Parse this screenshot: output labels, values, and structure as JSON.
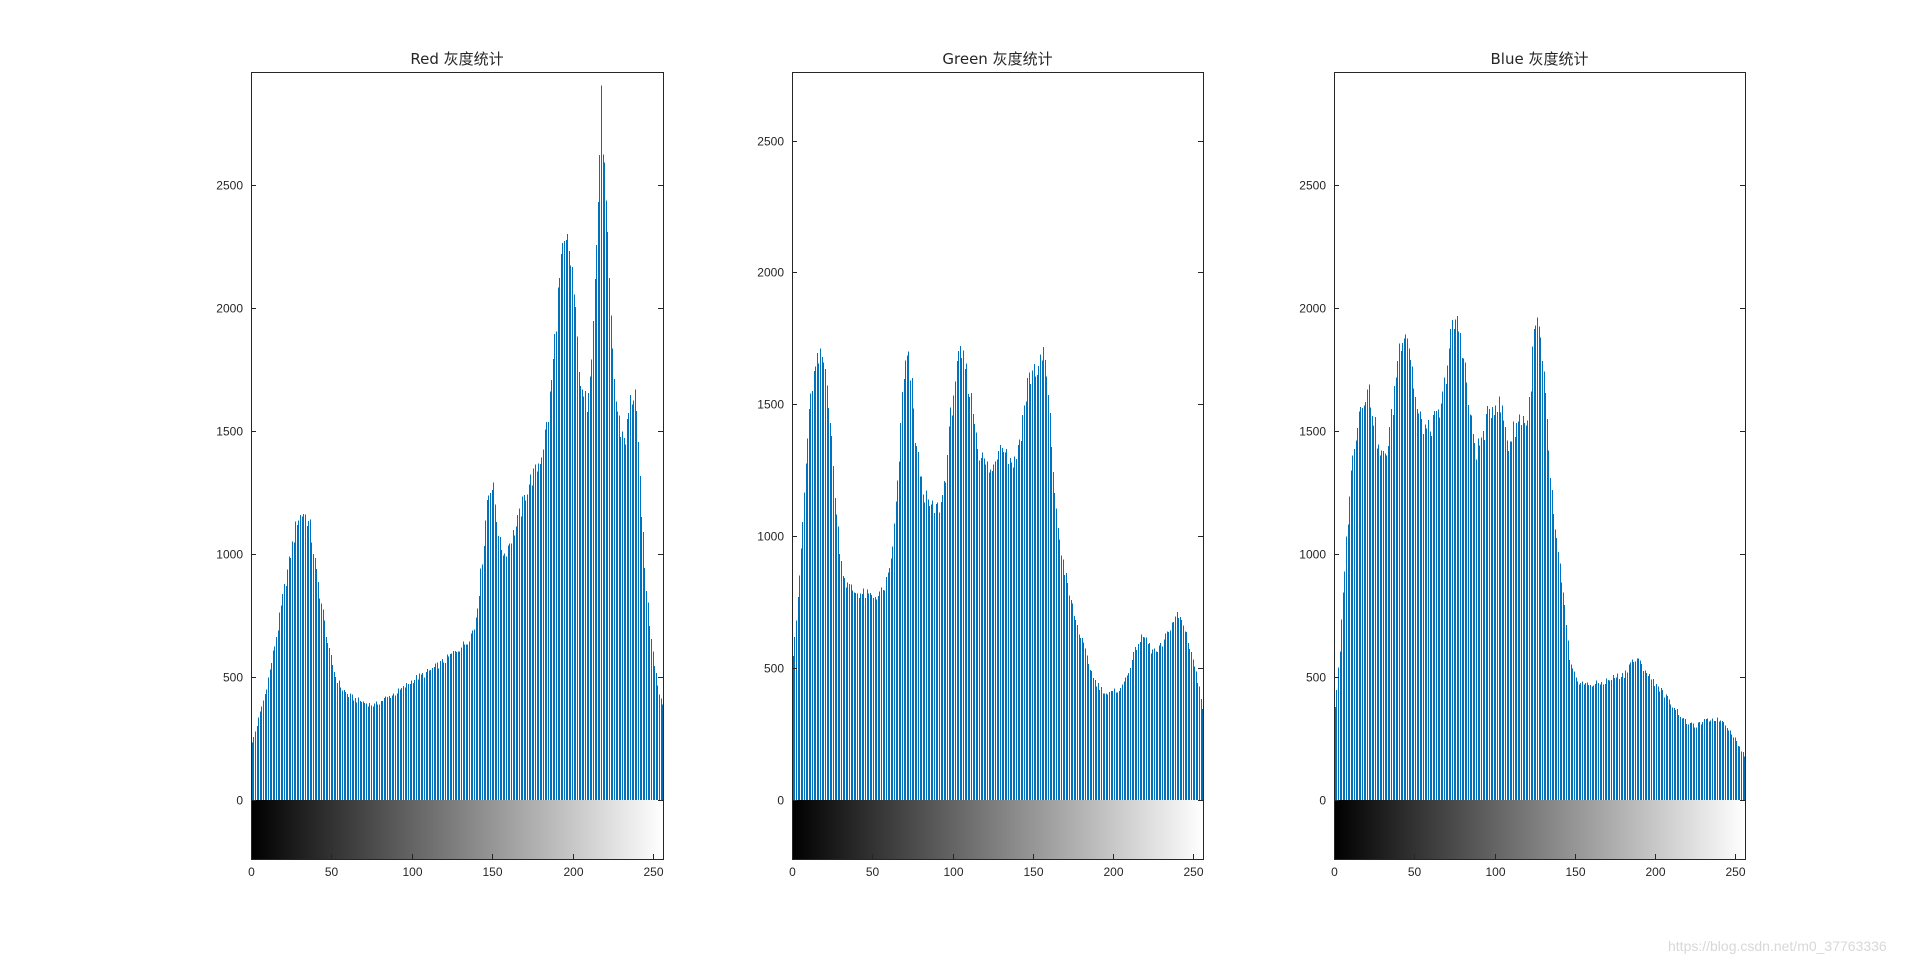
{
  "watermark": "https://blog.csdn.net/m0_37763336",
  "colors": {
    "bar": "#0072bd",
    "axis": "#262626",
    "background": "#ffffff"
  },
  "chart_data": [
    {
      "type": "bar",
      "title": "Red 灰度统计",
      "xlim": [
        0,
        256
      ],
      "ylim": [
        -230,
        2960
      ],
      "xticks": [
        0,
        50,
        100,
        150,
        200,
        250
      ],
      "yticks": [
        0,
        500,
        1000,
        1500,
        2000,
        2500
      ],
      "grid": false,
      "colorbar": "grayscale 0-255 below x-axis",
      "keypoints": [
        [
          0,
          230
        ],
        [
          4,
          330
        ],
        [
          8,
          430
        ],
        [
          12,
          560
        ],
        [
          16,
          700
        ],
        [
          20,
          860
        ],
        [
          24,
          1000
        ],
        [
          28,
          1140
        ],
        [
          32,
          1170
        ],
        [
          36,
          1110
        ],
        [
          40,
          920
        ],
        [
          44,
          760
        ],
        [
          48,
          600
        ],
        [
          52,
          500
        ],
        [
          56,
          450
        ],
        [
          60,
          425
        ],
        [
          64,
          410
        ],
        [
          70,
          395
        ],
        [
          76,
          385
        ],
        [
          82,
          410
        ],
        [
          88,
          430
        ],
        [
          94,
          455
        ],
        [
          100,
          490
        ],
        [
          108,
          515
        ],
        [
          115,
          545
        ],
        [
          122,
          580
        ],
        [
          128,
          615
        ],
        [
          133,
          640
        ],
        [
          138,
          700
        ],
        [
          141,
          850
        ],
        [
          144,
          1050
        ],
        [
          146,
          1220
        ],
        [
          148,
          1280
        ],
        [
          150,
          1260
        ],
        [
          152,
          1150
        ],
        [
          154,
          1040
        ],
        [
          157,
          1000
        ],
        [
          160,
          1050
        ],
        [
          164,
          1110
        ],
        [
          168,
          1200
        ],
        [
          172,
          1290
        ],
        [
          176,
          1330
        ],
        [
          180,
          1410
        ],
        [
          184,
          1560
        ],
        [
          187,
          1780
        ],
        [
          190,
          2050
        ],
        [
          193,
          2220
        ],
        [
          196,
          2260
        ],
        [
          199,
          2150
        ],
        [
          202,
          1860
        ],
        [
          205,
          1630
        ],
        [
          208,
          1620
        ],
        [
          211,
          1840
        ],
        [
          214,
          2250
        ],
        [
          217,
          2830
        ],
        [
          220,
          2400
        ],
        [
          223,
          1930
        ],
        [
          226,
          1620
        ],
        [
          229,
          1500
        ],
        [
          232,
          1470
        ],
        [
          235,
          1620
        ],
        [
          238,
          1660
        ],
        [
          241,
          1300
        ],
        [
          244,
          940
        ],
        [
          247,
          720
        ],
        [
          250,
          560
        ],
        [
          253,
          430
        ],
        [
          255,
          400
        ]
      ]
    },
    {
      "type": "bar",
      "title": "Green 灰度统计",
      "xlim": [
        0,
        256
      ],
      "ylim": [
        -230,
        2760
      ],
      "xticks": [
        0,
        50,
        100,
        150,
        200,
        250
      ],
      "yticks": [
        0,
        500,
        1000,
        1500,
        2000,
        2500
      ],
      "grid": false,
      "colorbar": "grayscale 0-255 below x-axis",
      "keypoints": [
        [
          0,
          560
        ],
        [
          3,
          750
        ],
        [
          6,
          1050
        ],
        [
          9,
          1380
        ],
        [
          12,
          1580
        ],
        [
          15,
          1650
        ],
        [
          18,
          1680
        ],
        [
          21,
          1610
        ],
        [
          24,
          1350
        ],
        [
          27,
          1080
        ],
        [
          30,
          900
        ],
        [
          33,
          820
        ],
        [
          38,
          790
        ],
        [
          44,
          780
        ],
        [
          50,
          770
        ],
        [
          56,
          790
        ],
        [
          60,
          860
        ],
        [
          63,
          1030
        ],
        [
          66,
          1300
        ],
        [
          68,
          1520
        ],
        [
          70,
          1650
        ],
        [
          72,
          1660
        ],
        [
          74,
          1560
        ],
        [
          76,
          1380
        ],
        [
          80,
          1200
        ],
        [
          84,
          1120
        ],
        [
          88,
          1100
        ],
        [
          92,
          1120
        ],
        [
          95,
          1240
        ],
        [
          98,
          1450
        ],
        [
          101,
          1600
        ],
        [
          104,
          1680
        ],
        [
          107,
          1650
        ],
        [
          110,
          1550
        ],
        [
          113,
          1440
        ],
        [
          116,
          1320
        ],
        [
          120,
          1270
        ],
        [
          124,
          1240
        ],
        [
          127,
          1320
        ],
        [
          130,
          1370
        ],
        [
          134,
          1300
        ],
        [
          138,
          1280
        ],
        [
          142,
          1400
        ],
        [
          146,
          1580
        ],
        [
          150,
          1640
        ],
        [
          153,
          1620
        ],
        [
          156,
          1700
        ],
        [
          158,
          1600
        ],
        [
          161,
          1350
        ],
        [
          164,
          1080
        ],
        [
          168,
          900
        ],
        [
          172,
          780
        ],
        [
          176,
          680
        ],
        [
          180,
          600
        ],
        [
          184,
          520
        ],
        [
          188,
          450
        ],
        [
          192,
          420
        ],
        [
          196,
          400
        ],
        [
          200,
          410
        ],
        [
          205,
          430
        ],
        [
          210,
          510
        ],
        [
          215,
          600
        ],
        [
          219,
          620
        ],
        [
          223,
          570
        ],
        [
          227,
          560
        ],
        [
          231,
          600
        ],
        [
          235,
          660
        ],
        [
          239,
          700
        ],
        [
          242,
          680
        ],
        [
          245,
          630
        ],
        [
          248,
          560
        ],
        [
          251,
          480
        ],
        [
          254,
          390
        ],
        [
          255,
          350
        ]
      ]
    },
    {
      "type": "bar",
      "title": "Blue 灰度统计",
      "xlim": [
        0,
        256
      ],
      "ylim": [
        -230,
        2960
      ],
      "xticks": [
        0,
        50,
        100,
        150,
        200,
        250
      ],
      "yticks": [
        0,
        500,
        1000,
        1500,
        2000,
        2500
      ],
      "grid": false,
      "colorbar": "grayscale 0-255 below x-axis",
      "keypoints": [
        [
          0,
          380
        ],
        [
          3,
          600
        ],
        [
          6,
          950
        ],
        [
          9,
          1250
        ],
        [
          12,
          1460
        ],
        [
          15,
          1580
        ],
        [
          18,
          1650
        ],
        [
          21,
          1660
        ],
        [
          24,
          1560
        ],
        [
          27,
          1420
        ],
        [
          30,
          1390
        ],
        [
          33,
          1450
        ],
        [
          36,
          1600
        ],
        [
          39,
          1800
        ],
        [
          42,
          1910
        ],
        [
          45,
          1900
        ],
        [
          48,
          1750
        ],
        [
          51,
          1580
        ],
        [
          54,
          1530
        ],
        [
          58,
          1500
        ],
        [
          62,
          1540
        ],
        [
          66,
          1580
        ],
        [
          69,
          1740
        ],
        [
          72,
          1880
        ],
        [
          75,
          1950
        ],
        [
          78,
          1900
        ],
        [
          81,
          1750
        ],
        [
          84,
          1560
        ],
        [
          88,
          1420
        ],
        [
          92,
          1480
        ],
        [
          96,
          1580
        ],
        [
          100,
          1620
        ],
        [
          104,
          1580
        ],
        [
          108,
          1440
        ],
        [
          112,
          1520
        ],
        [
          116,
          1560
        ],
        [
          120,
          1530
        ],
        [
          124,
          1890
        ],
        [
          126,
          1940
        ],
        [
          128,
          1850
        ],
        [
          131,
          1620
        ],
        [
          134,
          1320
        ],
        [
          137,
          1080
        ],
        [
          140,
          950
        ],
        [
          143,
          780
        ],
        [
          146,
          560
        ],
        [
          150,
          490
        ],
        [
          156,
          470
        ],
        [
          162,
          470
        ],
        [
          168,
          480
        ],
        [
          174,
          500
        ],
        [
          180,
          510
        ],
        [
          184,
          560
        ],
        [
          188,
          570
        ],
        [
          192,
          540
        ],
        [
          196,
          500
        ],
        [
          200,
          470
        ],
        [
          206,
          420
        ],
        [
          212,
          370
        ],
        [
          218,
          320
        ],
        [
          224,
          300
        ],
        [
          230,
          320
        ],
        [
          236,
          330
        ],
        [
          242,
          320
        ],
        [
          246,
          280
        ],
        [
          250,
          240
        ],
        [
          253,
          200
        ],
        [
          255,
          180
        ]
      ]
    }
  ]
}
